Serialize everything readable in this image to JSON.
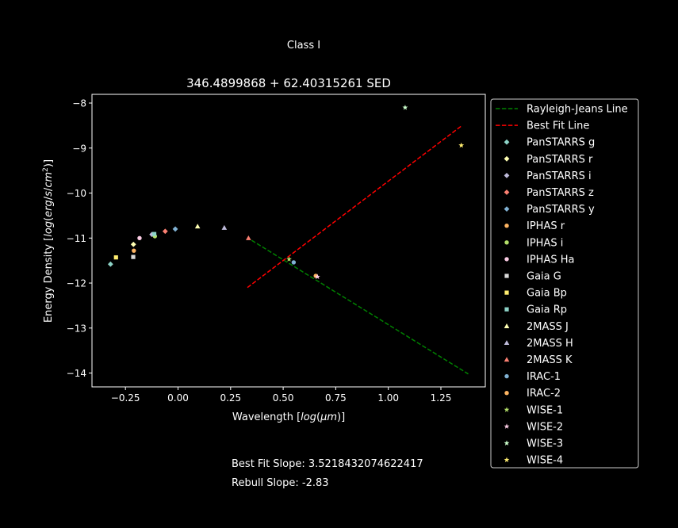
{
  "suptitle": "Class I",
  "notes": {
    "best_fit": "Best Fit Slope: 3.5218432074622417",
    "rebull": "Rebull Slope: -2.83"
  },
  "chart_data": {
    "type": "scatter",
    "title": "346.4899868 + 62.40315261 SED",
    "xlabel": "Wavelength [log(μm)]",
    "ylabel": "Energy Density [log(erg/s/cm²)]",
    "xlim": [
      -0.4,
      1.45
    ],
    "ylim": [
      -14.3,
      -7.8
    ],
    "xticks": [
      -0.25,
      0.0,
      0.25,
      0.5,
      0.75,
      1.0,
      1.25
    ],
    "xtick_labels": [
      "−0.25",
      "0.00",
      "0.25",
      "0.50",
      "0.75",
      "1.00",
      "1.25"
    ],
    "yticks": [
      -8,
      -9,
      -10,
      -11,
      -12,
      -13,
      -14
    ],
    "ytick_labels": [
      "−8",
      "−9",
      "−10",
      "−11",
      "−12",
      "−13",
      "−14"
    ],
    "grid": false,
    "legend_position": "outside-right",
    "lines": [
      {
        "name": "Rayleigh-Jeans Line",
        "color": "#008000",
        "x": [
          0.35,
          1.38
        ],
        "y": [
          -11.05,
          -14.02
        ]
      },
      {
        "name": "Best Fit Line",
        "color": "#ff0000",
        "x": [
          0.33,
          1.35
        ],
        "y": [
          -12.1,
          -8.5
        ]
      }
    ],
    "series": [
      {
        "name": "PanSTARRS g",
        "marker": "diamond",
        "color": "#8dd3c7",
        "x": [
          -0.321
        ],
        "y": [
          -11.58
        ]
      },
      {
        "name": "PanSTARRS r",
        "marker": "diamond",
        "color": "#ffffb3",
        "x": [
          -0.212
        ],
        "y": [
          -11.14
        ]
      },
      {
        "name": "PanSTARRS i",
        "marker": "diamond",
        "color": "#bebada",
        "x": [
          -0.124
        ],
        "y": [
          -10.92
        ]
      },
      {
        "name": "PanSTARRS z",
        "marker": "diamond",
        "color": "#fb8072",
        "x": [
          -0.061
        ],
        "y": [
          -10.85
        ]
      },
      {
        "name": "PanSTARRS y",
        "marker": "diamond",
        "color": "#80b1d3",
        "x": [
          -0.013
        ],
        "y": [
          -10.8
        ]
      },
      {
        "name": "IPHAS r",
        "marker": "circle",
        "color": "#fdb462",
        "x": [
          -0.21
        ],
        "y": [
          -11.28
        ]
      },
      {
        "name": "IPHAS i",
        "marker": "circle",
        "color": "#b3de69",
        "x": [
          -0.11
        ],
        "y": [
          -10.96
        ]
      },
      {
        "name": "IPHAS Ha",
        "marker": "circle",
        "color": "#fccde5",
        "x": [
          -0.183
        ],
        "y": [
          -11.0
        ]
      },
      {
        "name": "Gaia G",
        "marker": "square",
        "color": "#d9d9d9",
        "x": [
          -0.213
        ],
        "y": [
          -11.42
        ]
      },
      {
        "name": "Gaia Bp",
        "marker": "square",
        "color": "#ffed6f",
        "x": [
          -0.295
        ],
        "y": [
          -11.43
        ]
      },
      {
        "name": "Gaia Rp",
        "marker": "square",
        "color": "#8dd3c7",
        "x": [
          -0.113
        ],
        "y": [
          -10.91
        ]
      },
      {
        "name": "2MASS J",
        "marker": "triangle",
        "color": "#ffffb3",
        "x": [
          0.093
        ],
        "y": [
          -10.74
        ]
      },
      {
        "name": "2MASS H",
        "marker": "triangle",
        "color": "#bebada",
        "x": [
          0.22
        ],
        "y": [
          -10.77
        ]
      },
      {
        "name": "2MASS K",
        "marker": "triangle",
        "color": "#fb8072",
        "x": [
          0.335
        ],
        "y": [
          -11.0
        ]
      },
      {
        "name": "IRAC-1",
        "marker": "circle",
        "color": "#80b1d3",
        "x": [
          0.55
        ],
        "y": [
          -11.54
        ]
      },
      {
        "name": "IRAC-2",
        "marker": "circle",
        "color": "#fdb462",
        "x": [
          0.655
        ],
        "y": [
          -11.84
        ]
      },
      {
        "name": "WISE-1",
        "marker": "star",
        "color": "#b3de69",
        "x": [
          0.528
        ],
        "y": [
          -11.47
        ]
      },
      {
        "name": "WISE-2",
        "marker": "star",
        "color": "#fccde5",
        "x": [
          0.663
        ],
        "y": [
          -11.86
        ]
      },
      {
        "name": "WISE-3",
        "marker": "star",
        "color": "#ccffcc",
        "x": [
          1.08
        ],
        "y": [
          -8.1
        ]
      },
      {
        "name": "WISE-4",
        "marker": "star",
        "color": "#ffed6f",
        "x": [
          1.347
        ],
        "y": [
          -8.94
        ]
      }
    ]
  }
}
